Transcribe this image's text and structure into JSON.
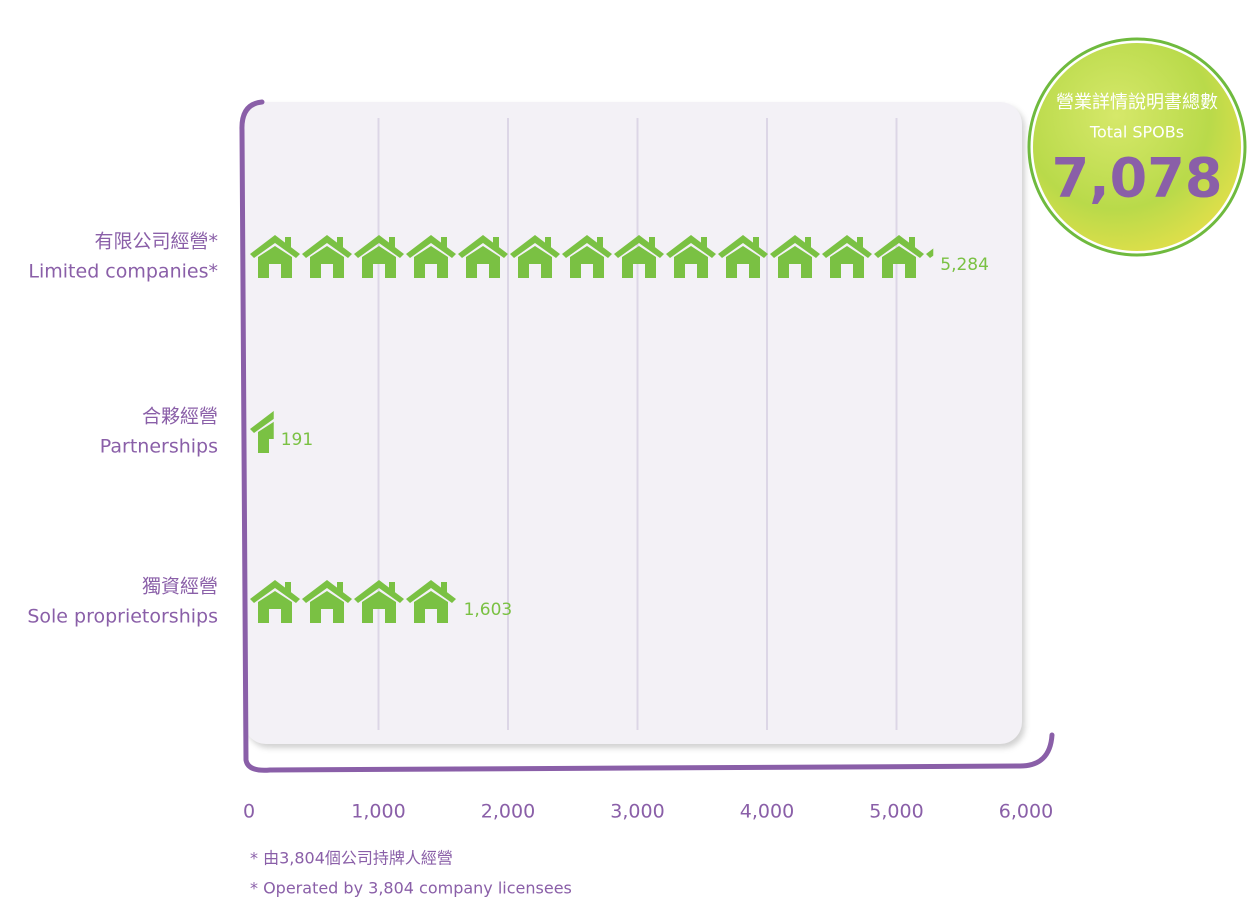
{
  "chart_data": {
    "type": "pictogram-bar",
    "categories": [
      "有限公司經營*",
      "合夥經營",
      "獨資經營"
    ],
    "categories_en": [
      "Limited companies*",
      "Partnerships",
      "Sole proprietorships"
    ],
    "values": [
      5284,
      191,
      1603
    ],
    "value_labels": [
      "5,284",
      "191",
      "1,603"
    ],
    "color": "#7ac143",
    "xlim": [
      0,
      6000
    ],
    "xticks": [
      0,
      {
        "value": 1000,
        "label": "1,000"
      },
      {
        "value": 2000,
        "label": "2,000"
      },
      {
        "value": 3000,
        "label": "3,000"
      },
      {
        "value": 4000,
        "label": "4,000"
      },
      {
        "value": 5000,
        "label": "5,000"
      },
      {
        "value": 6000,
        "label": "6,000"
      }
    ],
    "grid": true,
    "total": {
      "title_zh": "營業詳情說明書總數",
      "title_en": "Total SPOBs",
      "value": 7078,
      "value_label": "7,078"
    },
    "footnotes": [
      "*  由3,804個公司持牌人經營",
      "*  Operated by 3,804 company licensees"
    ]
  }
}
